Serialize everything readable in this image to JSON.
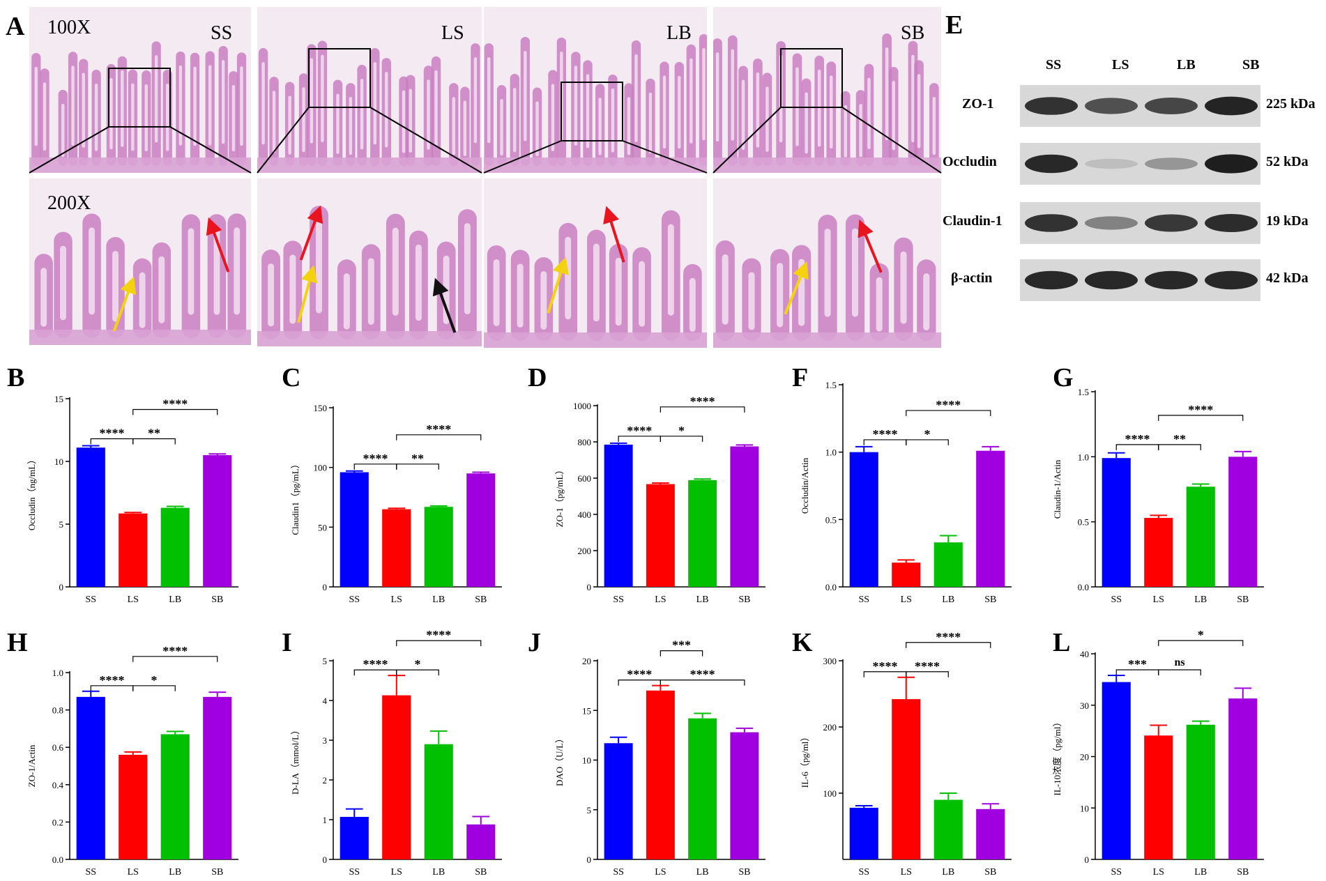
{
  "panels": {
    "A": "A",
    "E": "E",
    "B": "B",
    "C": "C",
    "D": "D",
    "F": "F",
    "G": "G",
    "H": "H",
    "I": "I",
    "J": "J",
    "K": "K",
    "L": "L"
  },
  "histology": {
    "groups": [
      "SS",
      "LS",
      "LB",
      "SB"
    ],
    "mag_low": "100X",
    "mag_high": "200X",
    "colors": {
      "tissue": "#c97fc2",
      "background": "#f4eaf2",
      "arrow_red": "#e8141e",
      "arrow_yellow": "#f5d20f",
      "arrow_black": "#111111"
    }
  },
  "western_blot": {
    "lanes": [
      "SS",
      "LS",
      "LB",
      "SB"
    ],
    "rows": [
      {
        "protein": "ZO-1",
        "kda": "225 kDa",
        "intensity": [
          0.85,
          0.7,
          0.75,
          0.92
        ]
      },
      {
        "protein": "Occludin",
        "kda": "52 kDa",
        "intensity": [
          0.9,
          0.15,
          0.35,
          0.95
        ]
      },
      {
        "protein": "Claudin-1",
        "kda": "19 kDa",
        "intensity": [
          0.85,
          0.45,
          0.82,
          0.88
        ]
      },
      {
        "protein": "β-actin",
        "kda": "42 kDa",
        "intensity": [
          0.9,
          0.9,
          0.9,
          0.9
        ]
      }
    ]
  },
  "series_colors": [
    "#0000ff",
    "#ff0000",
    "#00c000",
    "#a000e0"
  ],
  "chart_data": [
    {
      "id": "B",
      "type": "bar",
      "categories": [
        "SS",
        "LS",
        "LB",
        "SB"
      ],
      "values": [
        11.1,
        5.85,
        6.3,
        10.5
      ],
      "errors": [
        0.15,
        0.08,
        0.12,
        0.1
      ],
      "ylabel": "Occludin（ng/mL）",
      "ylim": [
        0,
        15
      ],
      "yticks": [
        "0",
        "5",
        "10",
        "15"
      ],
      "tick_values": [
        0,
        5,
        10,
        15
      ],
      "sig": [
        {
          "from": 0,
          "to": 1,
          "label": "****",
          "level": 0
        },
        {
          "from": 1,
          "to": 2,
          "label": "**",
          "level": 0
        },
        {
          "from": 1,
          "to": 3,
          "label": "****",
          "level": 1
        }
      ]
    },
    {
      "id": "C",
      "type": "bar",
      "categories": [
        "SS",
        "LS",
        "LB",
        "SB"
      ],
      "values": [
        96,
        65,
        67,
        95
      ],
      "errors": [
        1,
        0.8,
        0.8,
        1
      ],
      "ylabel": "Claudin1（pg/mL）",
      "ylim": [
        0,
        150
      ],
      "yticks": [
        "0",
        "50",
        "100",
        "150"
      ],
      "tick_values": [
        0,
        50,
        100,
        150
      ],
      "sig": [
        {
          "from": 0,
          "to": 1,
          "label": "****",
          "level": 0
        },
        {
          "from": 1,
          "to": 2,
          "label": "**",
          "level": 0
        },
        {
          "from": 1,
          "to": 3,
          "label": "****",
          "level": 1
        }
      ]
    },
    {
      "id": "D",
      "type": "bar",
      "categories": [
        "SS",
        "LS",
        "LB",
        "SB"
      ],
      "values": [
        785,
        567,
        589,
        775
      ],
      "errors": [
        8,
        6,
        6,
        8
      ],
      "ylabel": "ZO-1（pg/mL）",
      "ylim": [
        0,
        1000
      ],
      "yticks": [
        "0",
        "200",
        "400",
        "600",
        "800",
        "1000"
      ],
      "tick_values": [
        0,
        200,
        400,
        600,
        800,
        1000
      ],
      "sig": [
        {
          "from": 0,
          "to": 1,
          "label": "****",
          "level": 0
        },
        {
          "from": 1,
          "to": 2,
          "label": "*",
          "level": 0
        },
        {
          "from": 1,
          "to": 3,
          "label": "****",
          "level": 1
        }
      ]
    },
    {
      "id": "F",
      "type": "bar",
      "categories": [
        "SS",
        "LS",
        "LB",
        "SB"
      ],
      "values": [
        1.0,
        0.18,
        0.33,
        1.01
      ],
      "errors": [
        0.04,
        0.02,
        0.05,
        0.03
      ],
      "ylabel": "Occludin/Actin",
      "ylim": [
        0,
        1.5
      ],
      "yticks": [
        "0.0",
        "0.5",
        "1.0",
        "1.5"
      ],
      "tick_values": [
        0,
        0.5,
        1.0,
        1.5
      ],
      "sig": [
        {
          "from": 0,
          "to": 1,
          "label": "****",
          "level": 0
        },
        {
          "from": 1,
          "to": 2,
          "label": "*",
          "level": 0
        },
        {
          "from": 1,
          "to": 3,
          "label": "****",
          "level": 1
        }
      ]
    },
    {
      "id": "G",
      "type": "bar",
      "categories": [
        "SS",
        "LS",
        "LB",
        "SB"
      ],
      "values": [
        0.99,
        0.53,
        0.77,
        1.0
      ],
      "errors": [
        0.04,
        0.02,
        0.02,
        0.04
      ],
      "ylabel": "Claudin-1/Actin",
      "ylim": [
        0,
        1.5
      ],
      "yticks": [
        "0.0",
        "0.5",
        "1.0",
        "1.5"
      ],
      "tick_values": [
        0,
        0.5,
        1.0,
        1.5
      ],
      "sig": [
        {
          "from": 0,
          "to": 1,
          "label": "****",
          "level": 0
        },
        {
          "from": 1,
          "to": 2,
          "label": "**",
          "level": 0
        },
        {
          "from": 1,
          "to": 3,
          "label": "****",
          "level": 1
        }
      ]
    },
    {
      "id": "H",
      "type": "bar",
      "categories": [
        "SS",
        "LS",
        "LB",
        "SB"
      ],
      "values": [
        0.87,
        0.56,
        0.67,
        0.87
      ],
      "errors": [
        0.03,
        0.015,
        0.015,
        0.025
      ],
      "ylabel": "ZO-1/Actin",
      "ylim": [
        0,
        1.0
      ],
      "yticks": [
        "0.0",
        "0.2",
        "0.4",
        "0.6",
        "0.8",
        "1.0"
      ],
      "tick_values": [
        0,
        0.2,
        0.4,
        0.6,
        0.8,
        1.0
      ],
      "sig": [
        {
          "from": 0,
          "to": 1,
          "label": "****",
          "level": 0
        },
        {
          "from": 1,
          "to": 2,
          "label": "*",
          "level": 0
        },
        {
          "from": 1,
          "to": 3,
          "label": "****",
          "level": 1
        }
      ]
    },
    {
      "id": "I",
      "type": "bar",
      "categories": [
        "SS",
        "LS",
        "LB",
        "SB"
      ],
      "values": [
        1.07,
        4.13,
        2.9,
        0.88
      ],
      "errors": [
        0.2,
        0.5,
        0.33,
        0.2
      ],
      "ylabel": "D-LA（mmol/L）",
      "ylim": [
        0,
        5
      ],
      "yticks": [
        "0",
        "1",
        "2",
        "3",
        "4",
        "5"
      ],
      "tick_values": [
        0,
        1,
        2,
        3,
        4,
        5
      ],
      "sig": [
        {
          "from": 0,
          "to": 1,
          "label": "****",
          "level": 0
        },
        {
          "from": 1,
          "to": 2,
          "label": "*",
          "level": 0
        },
        {
          "from": 1,
          "to": 3,
          "label": "****",
          "level": 1
        }
      ]
    },
    {
      "id": "J",
      "type": "bar",
      "categories": [
        "SS",
        "LS",
        "LB",
        "SB"
      ],
      "values": [
        11.7,
        17.0,
        14.2,
        12.8
      ],
      "errors": [
        0.6,
        0.5,
        0.5,
        0.4
      ],
      "ylabel": "DAO（U/L）",
      "ylim": [
        0,
        20
      ],
      "yticks": [
        "0",
        "5",
        "10",
        "15",
        "20"
      ],
      "tick_values": [
        0,
        5,
        10,
        15,
        20
      ],
      "sig": [
        {
          "from": 0,
          "to": 1,
          "label": "****",
          "level": 0
        },
        {
          "from": 1,
          "to": 2,
          "label": "***",
          "level": 1
        },
        {
          "from": 1,
          "to": 3,
          "label": "****",
          "level": 0
        }
      ]
    },
    {
      "id": "K",
      "type": "bar",
      "categories": [
        "SS",
        "LS",
        "LB",
        "SB"
      ],
      "values": [
        78,
        242,
        90,
        76
      ],
      "errors": [
        3,
        33,
        10,
        8
      ],
      "ylabel": "IL-6（pg/ml）",
      "ylim": [
        0,
        300
      ],
      "yticks": [
        "100",
        "200",
        "300"
      ],
      "tick_values": [
        100,
        200,
        300
      ],
      "sig": [
        {
          "from": 0,
          "to": 1,
          "label": "****",
          "level": 0
        },
        {
          "from": 1,
          "to": 2,
          "label": "****",
          "level": 0
        },
        {
          "from": 1,
          "to": 3,
          "label": "****",
          "level": 1
        }
      ]
    },
    {
      "id": "L",
      "type": "bar",
      "categories": [
        "SS",
        "LS",
        "LB",
        "SB"
      ],
      "values": [
        34.5,
        24.1,
        26.2,
        31.3
      ],
      "errors": [
        1.3,
        2.0,
        0.7,
        2.0
      ],
      "ylabel": "IL-10浓度（pg/ml）",
      "ylim": [
        0,
        40
      ],
      "yticks": [
        "0",
        "10",
        "20",
        "30",
        "40"
      ],
      "tick_values": [
        0,
        10,
        20,
        30,
        40
      ],
      "sig": [
        {
          "from": 0,
          "to": 1,
          "label": "***",
          "level": 0
        },
        {
          "from": 1,
          "to": 2,
          "label": "ns",
          "level": 0
        },
        {
          "from": 1,
          "to": 3,
          "label": "*",
          "level": 1
        }
      ]
    }
  ]
}
